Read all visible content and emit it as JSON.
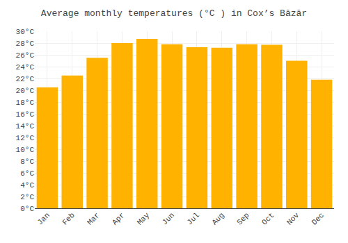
{
  "chart_data": {
    "type": "bar",
    "title": "Average monthly temperatures (°C ) in Cox’s Bāzār",
    "categories": [
      "Jan",
      "Feb",
      "Mar",
      "Apr",
      "May",
      "Jun",
      "Jul",
      "Aug",
      "Sep",
      "Oct",
      "Nov",
      "Dec"
    ],
    "values": [
      20.5,
      22.5,
      25.5,
      28.0,
      28.7,
      27.8,
      27.3,
      27.2,
      27.8,
      27.7,
      25.0,
      21.8
    ],
    "color": "#FFB300",
    "ylim": [
      0,
      30
    ],
    "yticks": [
      {
        "value": 0,
        "label": "0°C"
      },
      {
        "value": 2,
        "label": "2°C"
      },
      {
        "value": 4,
        "label": "4°C"
      },
      {
        "value": 6,
        "label": "6°C"
      },
      {
        "value": 8,
        "label": "8°C"
      },
      {
        "value": 10,
        "label": "10°C"
      },
      {
        "value": 12,
        "label": "12°C"
      },
      {
        "value": 14,
        "label": "14°C"
      },
      {
        "value": 16,
        "label": "16°C"
      },
      {
        "value": 18,
        "label": "18°C"
      },
      {
        "value": 20,
        "label": "20°C"
      },
      {
        "value": 22,
        "label": "22°C"
      },
      {
        "value": 24,
        "label": "24°C"
      },
      {
        "value": 26,
        "label": "26°C"
      },
      {
        "value": 28,
        "label": "28°C"
      },
      {
        "value": 30,
        "label": "30°C"
      }
    ],
    "grid": true
  }
}
